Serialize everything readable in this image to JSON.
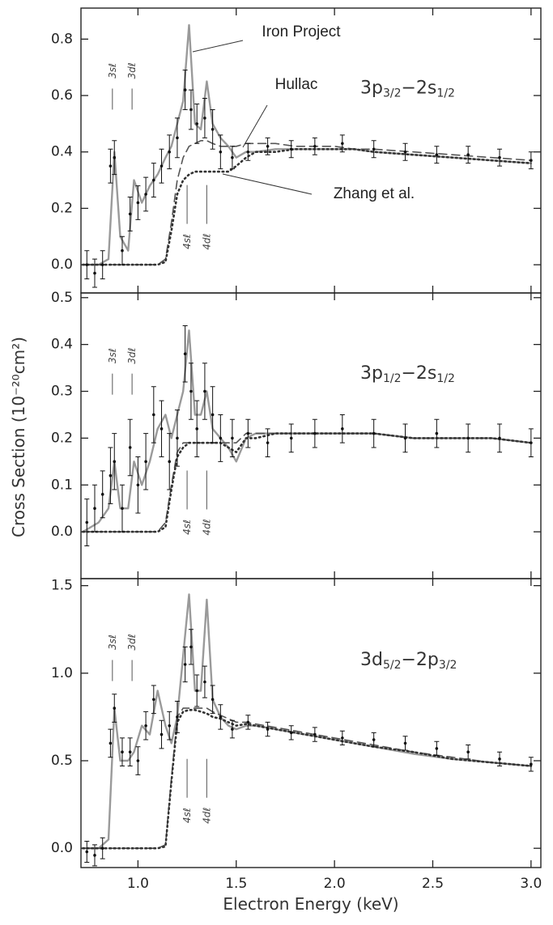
{
  "ylabel": "Cross Section (10⁻²⁰cm²)",
  "chart_data": [
    {
      "type": "line",
      "label_parts": [
        "3p",
        "3/2",
        "−2s",
        "1/2"
      ],
      "xlim": [
        0.71,
        3.05
      ],
      "ylim": [
        -0.1,
        0.91
      ],
      "yticks": [
        {
          "value": 0,
          "label": "0.0"
        },
        0.2,
        0.4,
        0.6,
        0.8
      ],
      "xtick_marks": [
        1,
        1.5,
        2,
        2.5,
        3
      ],
      "x": [
        0.72,
        0.8,
        0.85,
        0.88,
        0.91,
        0.95,
        0.98,
        1.02,
        1.06,
        1.1,
        1.14,
        1.17,
        1.2,
        1.23,
        1.26,
        1.29,
        1.32,
        1.35,
        1.38,
        1.42,
        1.46,
        1.5,
        1.55,
        1.6,
        1.7,
        1.8,
        1.9,
        2.0,
        2.1,
        2.2,
        2.4,
        2.6,
        2.8,
        3.0
      ],
      "series": [
        {
          "name": "Iron Project",
          "color": "#9a9a9a",
          "style": "solid",
          "values": [
            0.0,
            0.0,
            0.02,
            0.4,
            0.1,
            0.05,
            0.3,
            0.22,
            0.28,
            0.32,
            0.38,
            0.42,
            0.5,
            0.58,
            0.85,
            0.5,
            0.48,
            0.65,
            0.5,
            0.45,
            0.42,
            0.38,
            0.4,
            0.4,
            0.41,
            0.41,
            0.41,
            0.41,
            0.41,
            0.4,
            0.39,
            0.38,
            0.37,
            0.36
          ]
        },
        {
          "name": "Hullac",
          "color": "#555555",
          "style": "dashed",
          "values": [
            0,
            0,
            0,
            0,
            0,
            0,
            0,
            0,
            0,
            0,
            0.02,
            0.15,
            0.3,
            0.38,
            0.42,
            0.43,
            0.44,
            0.44,
            0.43,
            0.42,
            0.42,
            0.42,
            0.43,
            0.43,
            0.43,
            0.42,
            0.42,
            0.42,
            0.41,
            0.41,
            0.4,
            0.39,
            0.38,
            0.37
          ]
        },
        {
          "name": "Zhang et al.",
          "color": "#333333",
          "style": "dotted",
          "values": [
            0,
            0,
            0,
            0,
            0,
            0,
            0,
            0,
            0,
            0,
            0.01,
            0.12,
            0.25,
            0.3,
            0.32,
            0.33,
            0.33,
            0.33,
            0.33,
            0.33,
            0.33,
            0.35,
            0.38,
            0.4,
            0.4,
            0.41,
            0.41,
            0.41,
            0.41,
            0.4,
            0.39,
            0.38,
            0.37,
            0.36
          ]
        }
      ],
      "measured": {
        "color": "#111111",
        "x": [
          0.74,
          0.78,
          0.82,
          0.86,
          0.88,
          0.92,
          0.96,
          1.0,
          1.04,
          1.08,
          1.12,
          1.16,
          1.2,
          1.24,
          1.27,
          1.3,
          1.34,
          1.38,
          1.42,
          1.48,
          1.56,
          1.66,
          1.78,
          1.9,
          2.04,
          2.2,
          2.36,
          2.52,
          2.68,
          2.84,
          3.0
        ],
        "values": [
          0.0,
          -0.03,
          0.0,
          0.35,
          0.38,
          0.05,
          0.18,
          0.22,
          0.25,
          0.3,
          0.35,
          0.4,
          0.45,
          0.62,
          0.55,
          0.5,
          0.52,
          0.48,
          0.4,
          0.38,
          0.4,
          0.42,
          0.41,
          0.42,
          0.43,
          0.41,
          0.4,
          0.39,
          0.39,
          0.38,
          0.37
        ],
        "errors": [
          0.05,
          0.05,
          0.05,
          0.06,
          0.06,
          0.05,
          0.06,
          0.06,
          0.06,
          0.06,
          0.06,
          0.06,
          0.07,
          0.07,
          0.07,
          0.07,
          0.07,
          0.07,
          0.06,
          0.04,
          0.03,
          0.03,
          0.03,
          0.03,
          0.03,
          0.03,
          0.03,
          0.03,
          0.03,
          0.03,
          0.03
        ]
      },
      "resonances": [
        {
          "label": "3sℓ",
          "x": 0.87
        },
        {
          "label": "3dℓ",
          "x": 0.97
        },
        {
          "label": "4sℓ",
          "x": 1.25
        },
        {
          "label": "4dℓ",
          "x": 1.35
        }
      ]
    },
    {
      "type": "line",
      "label_parts": [
        "3p",
        "1/2",
        "−2s",
        "1/2"
      ],
      "xlim": [
        0.71,
        3.05
      ],
      "ylim": [
        -0.1,
        0.51
      ],
      "yticks": [
        {
          "value": 0,
          "label": "0.0"
        },
        0.1,
        0.2,
        0.3,
        0.4,
        0.5
      ],
      "xtick_marks": [
        1,
        1.5,
        2,
        2.5,
        3
      ],
      "x": [
        0.72,
        0.8,
        0.85,
        0.88,
        0.91,
        0.95,
        0.98,
        1.02,
        1.06,
        1.1,
        1.14,
        1.17,
        1.2,
        1.23,
        1.26,
        1.29,
        1.32,
        1.35,
        1.38,
        1.42,
        1.46,
        1.5,
        1.55,
        1.6,
        1.7,
        1.8,
        1.9,
        2.0,
        2.1,
        2.2,
        2.4,
        2.6,
        2.8,
        3.0
      ],
      "series": [
        {
          "color": "#9a9a9a",
          "style": "solid",
          "values": [
            0,
            0.02,
            0.05,
            0.15,
            0.05,
            0.05,
            0.15,
            0.1,
            0.15,
            0.22,
            0.25,
            0.2,
            0.25,
            0.3,
            0.43,
            0.25,
            0.25,
            0.3,
            0.22,
            0.2,
            0.18,
            0.15,
            0.2,
            0.21,
            0.21,
            0.21,
            0.21,
            0.21,
            0.21,
            0.21,
            0.2,
            0.2,
            0.2,
            0.19
          ]
        },
        {
          "color": "#555555",
          "style": "dashed",
          "values": [
            0,
            0,
            0,
            0,
            0,
            0,
            0,
            0,
            0,
            0,
            0.02,
            0.1,
            0.17,
            0.19,
            0.19,
            0.19,
            0.19,
            0.19,
            0.19,
            0.19,
            0.19,
            0.19,
            0.21,
            0.21,
            0.21,
            0.21,
            0.21,
            0.21,
            0.21,
            0.21,
            0.2,
            0.2,
            0.2,
            0.19
          ]
        },
        {
          "color": "#333333",
          "style": "dotted",
          "values": [
            0,
            0,
            0,
            0,
            0,
            0,
            0,
            0,
            0,
            0,
            0.01,
            0.09,
            0.16,
            0.18,
            0.19,
            0.19,
            0.19,
            0.19,
            0.19,
            0.19,
            0.18,
            0.17,
            0.2,
            0.2,
            0.21,
            0.21,
            0.21,
            0.21,
            0.21,
            0.21,
            0.2,
            0.2,
            0.2,
            0.19
          ]
        }
      ],
      "measured": {
        "color": "#111111",
        "x": [
          0.74,
          0.78,
          0.82,
          0.86,
          0.88,
          0.92,
          0.96,
          1.0,
          1.04,
          1.08,
          1.12,
          1.16,
          1.2,
          1.24,
          1.27,
          1.3,
          1.34,
          1.38,
          1.42,
          1.48,
          1.56,
          1.66,
          1.78,
          1.9,
          2.04,
          2.2,
          2.36,
          2.52,
          2.68,
          2.84,
          3.0
        ],
        "values": [
          0.02,
          0.05,
          0.08,
          0.12,
          0.15,
          0.05,
          0.18,
          0.1,
          0.15,
          0.25,
          0.22,
          0.15,
          0.2,
          0.38,
          0.3,
          0.22,
          0.3,
          0.25,
          0.2,
          0.2,
          0.21,
          0.19,
          0.2,
          0.21,
          0.22,
          0.21,
          0.2,
          0.21,
          0.2,
          0.2,
          0.19
        ],
        "errors": [
          0.05,
          0.05,
          0.05,
          0.06,
          0.06,
          0.05,
          0.06,
          0.06,
          0.06,
          0.06,
          0.06,
          0.06,
          0.06,
          0.06,
          0.06,
          0.06,
          0.06,
          0.06,
          0.05,
          0.04,
          0.03,
          0.03,
          0.03,
          0.03,
          0.03,
          0.03,
          0.03,
          0.03,
          0.03,
          0.03,
          0.03
        ]
      },
      "resonances": [
        {
          "label": "3sℓ",
          "x": 0.87
        },
        {
          "label": "3dℓ",
          "x": 0.97
        },
        {
          "label": "4sℓ",
          "x": 1.25
        },
        {
          "label": "4dℓ",
          "x": 1.35
        }
      ]
    },
    {
      "type": "line",
      "label_parts": [
        "3d",
        "5/2",
        "−2p",
        "3/2"
      ],
      "xlabel": "Electron Energy (keV)",
      "xlim": [
        0.71,
        3.05
      ],
      "ylim": [
        -0.11,
        1.54
      ],
      "yticks": [
        {
          "value": 0,
          "label": "0.0"
        },
        0.5,
        {
          "value": 1,
          "label": "1.0"
        },
        1.5
      ],
      "xticks": [
        {
          "value": 1,
          "label": "1.0"
        },
        1.5,
        {
          "value": 2,
          "label": "2.0"
        },
        2.5,
        {
          "value": 3,
          "label": "3.0"
        }
      ],
      "x": [
        0.72,
        0.8,
        0.85,
        0.88,
        0.91,
        0.95,
        0.98,
        1.02,
        1.06,
        1.1,
        1.14,
        1.17,
        1.2,
        1.23,
        1.26,
        1.29,
        1.32,
        1.35,
        1.38,
        1.42,
        1.46,
        1.5,
        1.55,
        1.6,
        1.7,
        1.8,
        1.9,
        2.0,
        2.1,
        2.2,
        2.4,
        2.6,
        2.8,
        3.0
      ],
      "series": [
        {
          "color": "#9a9a9a",
          "style": "solid",
          "values": [
            0,
            0,
            0.05,
            0.8,
            0.5,
            0.5,
            0.55,
            0.7,
            0.65,
            0.9,
            0.7,
            0.6,
            0.75,
            1.1,
            1.45,
            0.9,
            0.9,
            1.42,
            0.85,
            0.75,
            0.7,
            0.68,
            0.7,
            0.7,
            0.68,
            0.66,
            0.64,
            0.62,
            0.6,
            0.58,
            0.54,
            0.51,
            0.49,
            0.47
          ]
        },
        {
          "color": "#555555",
          "style": "dashed",
          "values": [
            0,
            0,
            0,
            0,
            0,
            0,
            0,
            0,
            0,
            0,
            0.02,
            0.4,
            0.75,
            0.8,
            0.8,
            0.8,
            0.8,
            0.8,
            0.78,
            0.76,
            0.74,
            0.72,
            0.72,
            0.71,
            0.69,
            0.67,
            0.65,
            0.63,
            0.61,
            0.59,
            0.55,
            0.52,
            0.49,
            0.47
          ]
        },
        {
          "color": "#333333",
          "style": "dotted",
          "values": [
            0,
            0,
            0,
            0,
            0,
            0,
            0,
            0,
            0,
            0,
            0.01,
            0.38,
            0.72,
            0.78,
            0.79,
            0.79,
            0.78,
            0.77,
            0.75,
            0.74,
            0.72,
            0.7,
            0.71,
            0.7,
            0.68,
            0.66,
            0.64,
            0.62,
            0.6,
            0.58,
            0.55,
            0.51,
            0.49,
            0.47
          ]
        }
      ],
      "measured": {
        "color": "#111111",
        "x": [
          0.74,
          0.78,
          0.82,
          0.86,
          0.88,
          0.92,
          0.96,
          1.0,
          1.04,
          1.08,
          1.12,
          1.16,
          1.2,
          1.24,
          1.27,
          1.3,
          1.34,
          1.38,
          1.42,
          1.48,
          1.56,
          1.66,
          1.78,
          1.9,
          2.04,
          2.2,
          2.36,
          2.52,
          2.68,
          2.84,
          3.0
        ],
        "values": [
          -0.02,
          -0.04,
          0.0,
          0.6,
          0.8,
          0.55,
          0.55,
          0.5,
          0.7,
          0.85,
          0.65,
          0.7,
          0.75,
          1.05,
          1.15,
          0.9,
          0.95,
          0.85,
          0.75,
          0.68,
          0.72,
          0.68,
          0.66,
          0.65,
          0.63,
          0.62,
          0.6,
          0.57,
          0.55,
          0.51,
          0.48
        ],
        "errors": [
          0.06,
          0.06,
          0.06,
          0.08,
          0.08,
          0.08,
          0.08,
          0.08,
          0.08,
          0.08,
          0.08,
          0.08,
          0.09,
          0.1,
          0.1,
          0.09,
          0.09,
          0.08,
          0.07,
          0.05,
          0.04,
          0.04,
          0.04,
          0.04,
          0.04,
          0.04,
          0.04,
          0.04,
          0.04,
          0.04,
          0.04
        ]
      },
      "resonances": [
        {
          "label": "3sℓ",
          "x": 0.87
        },
        {
          "label": "3dℓ",
          "x": 0.97
        },
        {
          "label": "4sℓ",
          "x": 1.25
        },
        {
          "label": "4dℓ",
          "x": 1.35
        }
      ]
    }
  ]
}
